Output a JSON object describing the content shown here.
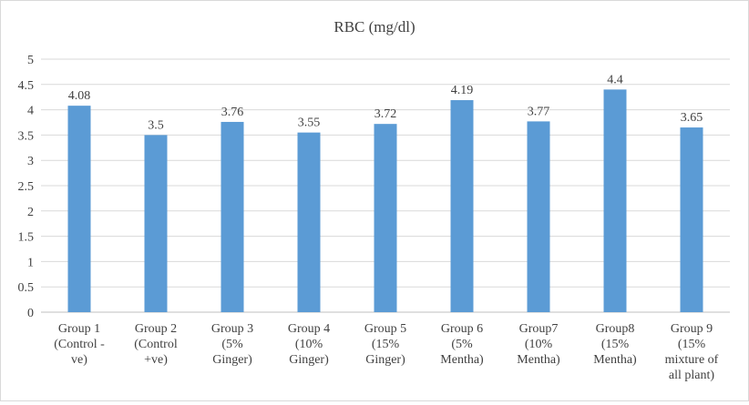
{
  "chart_data": {
    "type": "bar",
    "title": "RBC (mg/dl)",
    "xlabel": "",
    "ylabel": "",
    "ylim": [
      0,
      5
    ],
    "yticks": [
      "0",
      "0.5",
      "1",
      "1.5",
      "2",
      "2.5",
      "3",
      "3.5",
      "4",
      "4.5",
      "5"
    ],
    "grid": "horizontal",
    "legend": "none",
    "bar_color": "#5b9bd5",
    "categories": [
      [
        "Group 1",
        "(Control -",
        "ve)"
      ],
      [
        "Group 2",
        "(Control",
        "+ve)"
      ],
      [
        "Group 3",
        "(5%",
        "Ginger)"
      ],
      [
        "Group 4",
        "(10%",
        "Ginger)"
      ],
      [
        "Group 5",
        "(15%",
        "Ginger)"
      ],
      [
        "Group 6",
        "(5%",
        "Mentha)"
      ],
      [
        "Group7",
        "(10%",
        "Mentha)"
      ],
      [
        "Group8",
        "(15%",
        "Mentha)"
      ],
      [
        "Group 9",
        "(15%",
        "mixture of",
        "all plant)"
      ]
    ],
    "values": [
      4.08,
      3.5,
      3.76,
      3.55,
      3.72,
      4.19,
      3.77,
      4.4,
      3.65
    ],
    "data_labels": [
      "4.08",
      "3.5",
      "3.76",
      "3.55",
      "3.72",
      "4.19",
      "3.77",
      "4.4",
      "3.65"
    ]
  }
}
